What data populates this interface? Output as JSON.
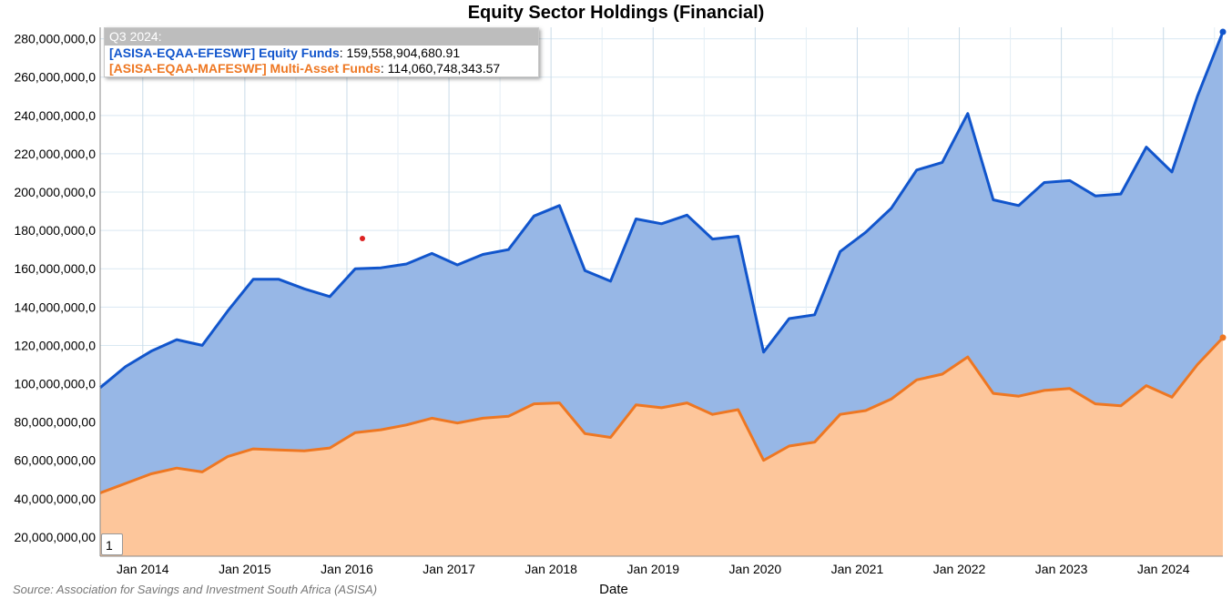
{
  "title": "Equity Sector Holdings (Financial)",
  "source": "Source: Association for Savings and Investment South Africa (ASISA)",
  "page_indicator": "1",
  "tooltip": {
    "header": "Q3 2024:",
    "rows": [
      {
        "name": "[ASISA-EQAA-EFESWF] Equity Funds",
        "value": "159,558,904,680.91",
        "color": "#1155cc"
      },
      {
        "name": "[ASISA-EQAA-MAFESWF] Multi-Asset Funds",
        "value": "114,060,748,343.57",
        "color": "#ee7722"
      }
    ]
  },
  "chart_data": {
    "type": "area",
    "stacked": true,
    "title": "Equity Sector Holdings (Financial)",
    "xlabel": "Date",
    "ylabel": "",
    "ylim": [
      10000000000,
      286000000000
    ],
    "yticks": [
      {
        "value": 20000000000,
        "label": "20,000,000,00"
      },
      {
        "value": 40000000000,
        "label": "40,000,000,00"
      },
      {
        "value": 60000000000,
        "label": "60,000,000,00"
      },
      {
        "value": 80000000000,
        "label": "80,000,000,00"
      },
      {
        "value": 100000000000,
        "label": "100,000,000,0"
      },
      {
        "value": 120000000000,
        "label": "120,000,000,0"
      },
      {
        "value": 140000000000,
        "label": "140,000,000,0"
      },
      {
        "value": 160000000000,
        "label": "160,000,000,0"
      },
      {
        "value": 180000000000,
        "label": "180,000,000,0"
      },
      {
        "value": 200000000000,
        "label": "200,000,000,0"
      },
      {
        "value": 220000000000,
        "label": "220,000,000,0"
      },
      {
        "value": 240000000000,
        "label": "240,000,000,0"
      },
      {
        "value": 260000000000,
        "label": "260,000,000,0"
      },
      {
        "value": 280000000000,
        "label": "280,000,000,0"
      }
    ],
    "xticks": [
      "Jan 2014",
      "Jan 2015",
      "Jan 2016",
      "Jan 2017",
      "Jan 2018",
      "Jan 2019",
      "Jan 2020",
      "Jan 2021",
      "Jan 2022",
      "Jan 2023",
      "Jan 2024"
    ],
    "x": [
      "Q3 2013",
      "Q4 2013",
      "Q1 2014",
      "Q2 2014",
      "Q3 2014",
      "Q4 2014",
      "Q1 2015",
      "Q2 2015",
      "Q3 2015",
      "Q4 2015",
      "Q1 2016",
      "Q2 2016",
      "Q3 2016",
      "Q4 2016",
      "Q1 2017",
      "Q2 2017",
      "Q3 2017",
      "Q4 2017",
      "Q1 2018",
      "Q2 2018",
      "Q3 2018",
      "Q4 2018",
      "Q1 2019",
      "Q2 2019",
      "Q3 2019",
      "Q4 2019",
      "Q1 2020",
      "Q2 2020",
      "Q3 2020",
      "Q4 2020",
      "Q1 2021",
      "Q2 2021",
      "Q3 2021",
      "Q4 2021",
      "Q1 2022",
      "Q2 2022",
      "Q3 2022",
      "Q4 2022",
      "Q1 2023",
      "Q2 2023",
      "Q3 2023",
      "Q4 2023",
      "Q1 2024",
      "Q2 2024",
      "Q3 2024"
    ],
    "series": [
      {
        "name": "[ASISA-EQAA-MAFESWF] Multi-Asset Funds",
        "color": "#ee7722",
        "fill": "#fdc69b",
        "values": [
          33,
          38,
          43,
          46,
          44,
          52,
          56,
          55.5,
          55,
          56.5,
          64.5,
          66,
          68.5,
          72,
          69.5,
          72,
          73,
          79.5,
          80,
          64,
          62,
          79,
          77.5,
          80,
          74,
          76.5,
          50,
          57.5,
          59.5,
          74,
          76,
          82,
          92,
          95,
          104,
          85,
          83.5,
          86.5,
          87.5,
          79.5,
          78.5,
          89,
          83,
          100,
          114.06
        ]
      },
      {
        "name": "[ASISA-EQAA-EFESWF] Equity Funds",
        "color": "#1155cc",
        "fill": "#97b7e6",
        "values": [
          55,
          61,
          64,
          67,
          66,
          76,
          88.5,
          89,
          84.5,
          79,
          85.5,
          84.5,
          84,
          86,
          82.5,
          85.5,
          87,
          98,
          103,
          85,
          81.5,
          97,
          96,
          98,
          91.5,
          90.5,
          56.5,
          66.5,
          66.5,
          85,
          93,
          99.5,
          109.5,
          110.5,
          127,
          101,
          99.5,
          108.5,
          108.5,
          108.5,
          110.5,
          124.5,
          117.5,
          140,
          159.56
        ]
      }
    ],
    "value_unit": "billions",
    "legend": "tooltip"
  }
}
